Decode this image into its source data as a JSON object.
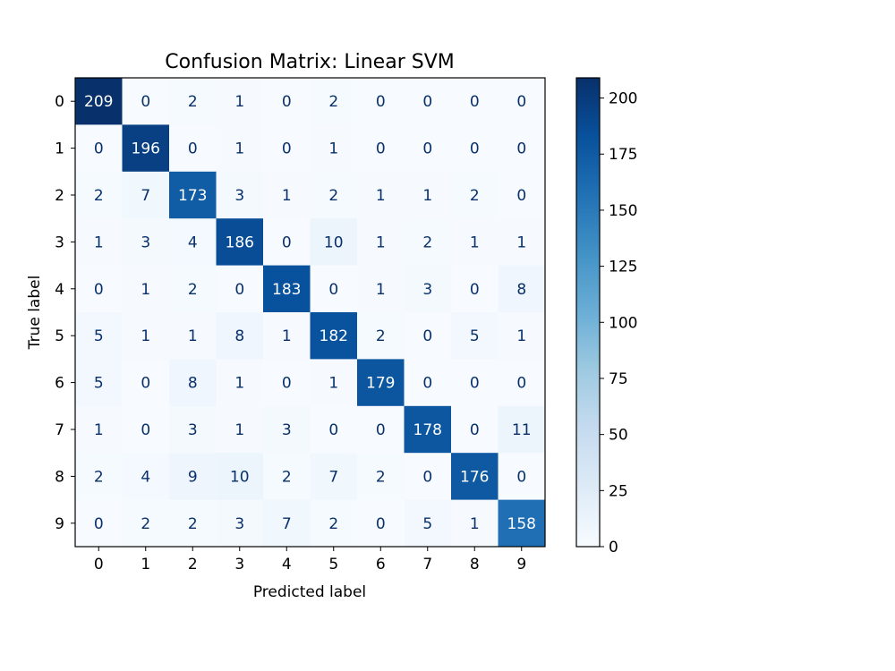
{
  "chart_data": {
    "type": "heatmap",
    "title": "Confusion Matrix: Linear SVM",
    "xlabel": "Predicted label",
    "ylabel": "True label",
    "x_categories": [
      "0",
      "1",
      "2",
      "3",
      "4",
      "5",
      "6",
      "7",
      "8",
      "9"
    ],
    "y_categories": [
      "0",
      "1",
      "2",
      "3",
      "4",
      "5",
      "6",
      "7",
      "8",
      "9"
    ],
    "matrix": [
      [
        209,
        0,
        2,
        1,
        0,
        2,
        0,
        0,
        0,
        0
      ],
      [
        0,
        196,
        0,
        1,
        0,
        1,
        0,
        0,
        0,
        0
      ],
      [
        2,
        7,
        173,
        3,
        1,
        2,
        1,
        1,
        2,
        0
      ],
      [
        1,
        3,
        4,
        186,
        0,
        10,
        1,
        2,
        1,
        1
      ],
      [
        0,
        1,
        2,
        0,
        183,
        0,
        1,
        3,
        0,
        8
      ],
      [
        5,
        1,
        1,
        8,
        1,
        182,
        2,
        0,
        5,
        1
      ],
      [
        5,
        0,
        8,
        1,
        0,
        1,
        179,
        0,
        0,
        0
      ],
      [
        1,
        0,
        3,
        1,
        3,
        0,
        0,
        178,
        0,
        11
      ],
      [
        2,
        4,
        9,
        10,
        2,
        7,
        2,
        0,
        176,
        0
      ],
      [
        0,
        2,
        2,
        3,
        7,
        2,
        0,
        5,
        1,
        158
      ]
    ],
    "colorbar": {
      "colormap": "Blues",
      "range": [
        0,
        209
      ],
      "ticks": [
        0,
        25,
        50,
        75,
        100,
        125,
        150,
        175,
        200
      ]
    },
    "text_colors": {
      "light": "#ffffff",
      "dark": "#08306b"
    }
  }
}
